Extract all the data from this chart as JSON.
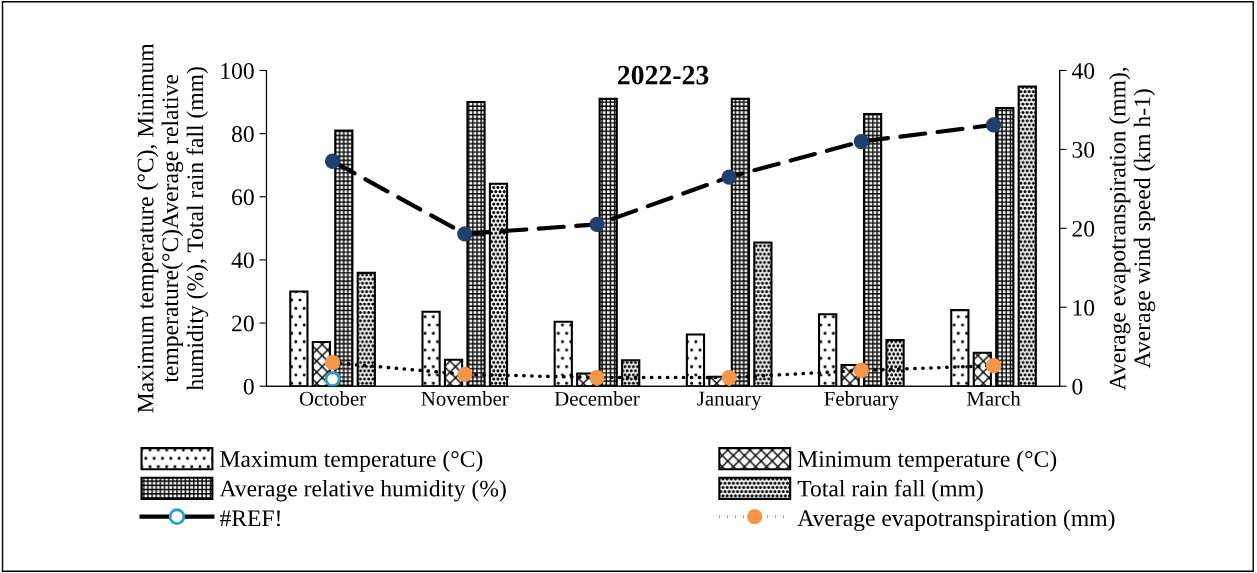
{
  "chart_data": {
    "type": "bar",
    "title": "2022-23",
    "ylabel": "Maximum temperature (°C), Minimum\ntemperature(°C)Average relative\nhumidity (%), Total rain fall (mm)",
    "y2label": "Average evapotranspiration (mm),\nAverage wind speed (km h-1)",
    "categories": [
      "October",
      "November",
      "December",
      "January",
      "February",
      "March"
    ],
    "series": [
      {
        "name": "Maximum temperature (°C)",
        "color": "#000000",
        "values": [
          30,
          23.6,
          20.4,
          16.4,
          22.8,
          24.1
        ]
      },
      {
        "name": "Minimum temperature (°C)",
        "color": "#000000",
        "values": [
          14,
          8.4,
          4,
          3,
          6.7,
          10.6
        ]
      },
      {
        "name": "Average relative humidity (%)",
        "color": "#000000",
        "values": [
          81,
          90,
          91,
          91,
          86.2,
          88.1
        ]
      },
      {
        "name": "Total rain fall (mm)",
        "color": "#000000",
        "values": [
          35.9,
          64.1,
          8.2,
          45.5,
          14.6,
          94.9
        ]
      },
      {
        "name": "#REF!",
        "type": "scatter",
        "axis": "y2",
        "color": "#2e9fc4",
        "marker": "circle",
        "values": [
          0.9,
          null,
          null,
          null,
          null,
          null
        ]
      },
      {
        "name": "Average evapotranspiration (mm)",
        "type": "line",
        "axis": "y2",
        "color": "#f79646",
        "line_style": "dotted",
        "marker": "circle",
        "values": [
          3.0,
          1.5,
          1.1,
          1.1,
          2.0,
          2.6
        ]
      },
      {
        "type": "line",
        "axis": "y2",
        "color": "#1f3f6e",
        "line_style": "dashed",
        "marker": "circle",
        "values": [
          28.5,
          19.3,
          20.5,
          26.5,
          31.0,
          33.1
        ]
      }
    ],
    "ylim": [
      0,
      100
    ],
    "yticks": [
      0,
      20,
      40,
      60,
      80,
      100
    ],
    "y2lim": [
      0,
      40
    ],
    "y2ticks": [
      0,
      10,
      20,
      30,
      40
    ],
    "grid": false,
    "legend": "bottom"
  }
}
